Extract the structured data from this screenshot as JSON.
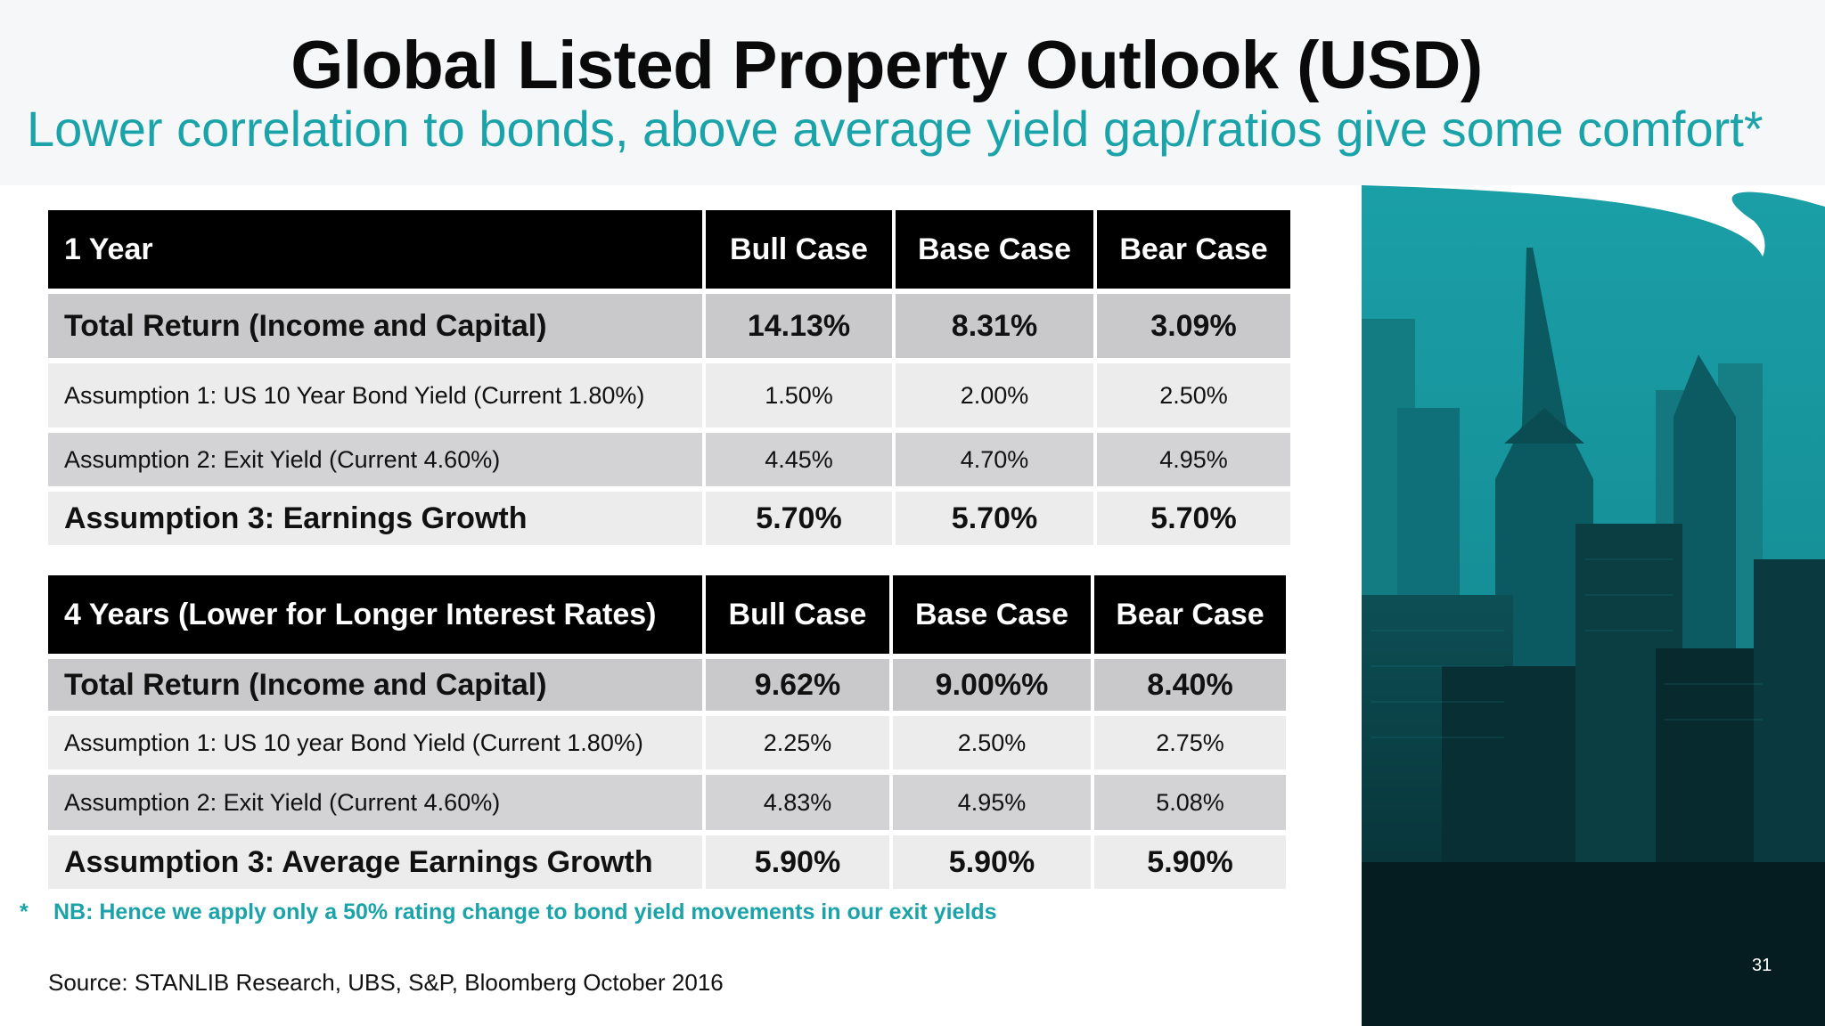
{
  "slide": {
    "title": "Global Listed Property Outlook (USD)",
    "subtitle": "Lower correlation to bonds, above average yield gap/ratios give some comfort*",
    "note_marker": "*",
    "note": "NB: Hence we apply only a 50% rating change to bond yield movements in our exit yields",
    "source": "Source: STANLIB Research, UBS, S&P, Bloomberg  October 2016",
    "page_number": "31"
  },
  "table_1": {
    "header": [
      "1 Year",
      "Bull Case",
      "Base Case",
      "Bear Case"
    ],
    "rows": [
      [
        "Total Return (Income  and Capital)",
        "14.13%",
        "8.31%",
        "3.09%"
      ],
      [
        "Assumption 1: US 10 Year Bond Yield  (Current 1.80%)",
        "1.50%",
        "2.00%",
        "2.50%"
      ],
      [
        "Assumption 2:  Exit Yield (Current 4.60%)",
        "4.45%",
        "4.70%",
        "4.95%"
      ],
      [
        "Assumption 3: Earnings Growth",
        "5.70%",
        "5.70%",
        "5.70%"
      ]
    ]
  },
  "table_2": {
    "header": [
      "4 Years (Lower for Longer Interest Rates)",
      "Bull Case",
      "Base Case",
      "Bear Case"
    ],
    "rows": [
      [
        "Total Return  (Income and Capital)",
        "9.62%",
        "9.00%%",
        "8.40%"
      ],
      [
        "Assumption 1: US 10 year Bond Yield  (Current 1.80%)",
        "2.25%",
        "2.50%",
        "2.75%"
      ],
      [
        "Assumption 2:  Exit Yield (Current 4.60%)",
        "4.83%",
        "4.95%",
        "5.08%"
      ],
      [
        "Assumption 3: Average Earnings Growth",
        "5.90%",
        "5.90%",
        "5.90%"
      ]
    ]
  },
  "colors": {
    "accent_teal": "#1aa3a8",
    "header_black": "#000000",
    "photo_tint": "#129aa3"
  },
  "image": {
    "icon": "city-skyline-photo"
  }
}
